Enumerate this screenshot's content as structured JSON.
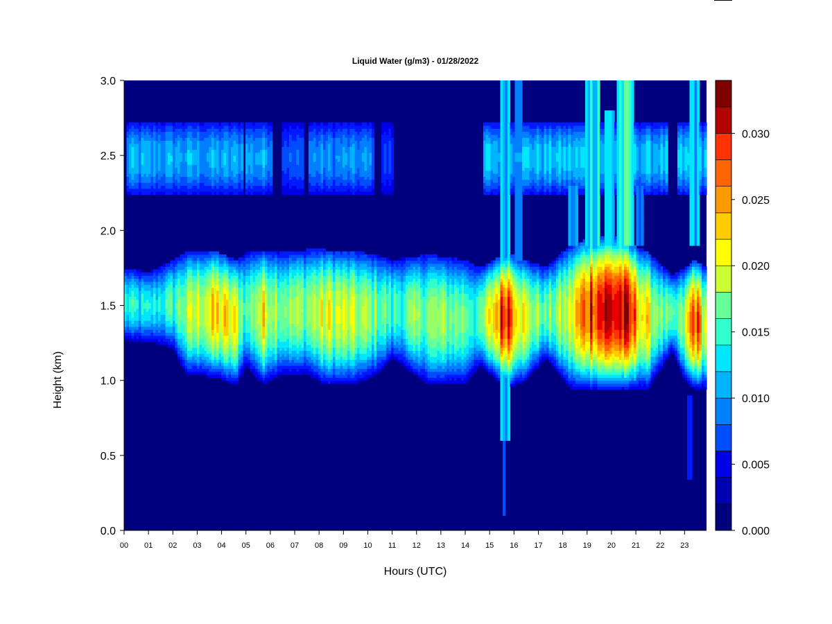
{
  "chart_data": {
    "type": "heatmap",
    "title": "Liquid Water (g/m3) - 01/28/2022",
    "xlabel": "Hours (UTC)",
    "ylabel": "Height (km)",
    "x_tick_labels": [
      "00",
      "01",
      "02",
      "03",
      "04",
      "05",
      "06",
      "07",
      "08",
      "09",
      "10",
      "11",
      "12",
      "13",
      "14",
      "15",
      "16",
      "17",
      "18",
      "19",
      "20",
      "21",
      "22",
      "23"
    ],
    "y_tick_labels": [
      "0.0",
      "0.5",
      "1.0",
      "1.5",
      "2.0",
      "2.5",
      "3.0"
    ],
    "y_tick_values": [
      0.0,
      0.5,
      1.0,
      1.5,
      2.0,
      2.5,
      3.0
    ],
    "xlim": [
      0,
      23.9
    ],
    "ylim": [
      0,
      3.0
    ],
    "colorbar": {
      "range": [
        0,
        0.034
      ],
      "levels": 17,
      "colors": [
        "#00007f",
        "#0000b3",
        "#0000e6",
        "#0019ff",
        "#004dff",
        "#0080ff",
        "#00b3ff",
        "#00e6ff",
        "#33ffcc",
        "#66ff99",
        "#99ff66",
        "#ccff33",
        "#ffff00",
        "#ffcc00",
        "#ff9900",
        "#ff6600",
        "#ff3300",
        "#e60000",
        "#b30000",
        "#800000"
      ],
      "tick_labels": [
        "0.000",
        "0.005",
        "0.010",
        "0.015",
        "0.020",
        "0.025",
        "0.030"
      ],
      "tick_values": [
        0.0,
        0.005,
        0.01,
        0.015,
        0.02,
        0.025,
        0.03
      ]
    },
    "features": {
      "low_cloud": {
        "profile": [
          {
            "t": 0.0,
            "base": 1.27,
            "top": 1.75,
            "peak": 0.012
          },
          {
            "t": 1.0,
            "base": 1.26,
            "top": 1.72,
            "peak": 0.011
          },
          {
            "t": 2.0,
            "base": 1.22,
            "top": 1.8,
            "peak": 0.013
          },
          {
            "t": 2.5,
            "base": 1.05,
            "top": 1.85,
            "peak": 0.016
          },
          {
            "t": 3.8,
            "base": 1.02,
            "top": 1.86,
            "peak": 0.021
          },
          {
            "t": 4.6,
            "base": 0.97,
            "top": 1.8,
            "peak": 0.019
          },
          {
            "t": 5.0,
            "base": 1.1,
            "top": 1.85,
            "peak": 0.013
          },
          {
            "t": 5.7,
            "base": 0.98,
            "top": 1.86,
            "peak": 0.02
          },
          {
            "t": 6.5,
            "base": 1.04,
            "top": 1.85,
            "peak": 0.016
          },
          {
            "t": 7.5,
            "base": 1.05,
            "top": 1.87,
            "peak": 0.016
          },
          {
            "t": 8.3,
            "base": 0.97,
            "top": 1.87,
            "peak": 0.019
          },
          {
            "t": 9.5,
            "base": 0.98,
            "top": 1.86,
            "peak": 0.017
          },
          {
            "t": 10.5,
            "base": 1.05,
            "top": 1.83,
            "peak": 0.015
          },
          {
            "t": 11.0,
            "base": 1.15,
            "top": 1.8,
            "peak": 0.013
          },
          {
            "t": 12.5,
            "base": 0.97,
            "top": 1.84,
            "peak": 0.016
          },
          {
            "t": 14.0,
            "base": 0.98,
            "top": 1.8,
            "peak": 0.015
          },
          {
            "t": 14.6,
            "base": 1.1,
            "top": 1.75,
            "peak": 0.013
          },
          {
            "t": 15.7,
            "base": 0.95,
            "top": 1.85,
            "peak": 0.03
          },
          {
            "t": 16.5,
            "base": 1.0,
            "top": 1.8,
            "peak": 0.018
          },
          {
            "t": 17.3,
            "base": 1.15,
            "top": 1.75,
            "peak": 0.014
          },
          {
            "t": 18.3,
            "base": 0.95,
            "top": 1.9,
            "peak": 0.018
          },
          {
            "t": 19.2,
            "base": 0.94,
            "top": 1.95,
            "peak": 0.029
          },
          {
            "t": 20.4,
            "base": 0.94,
            "top": 1.95,
            "peak": 0.03
          },
          {
            "t": 21.5,
            "base": 0.95,
            "top": 1.85,
            "peak": 0.019
          },
          {
            "t": 22.5,
            "base": 1.2,
            "top": 1.7,
            "peak": 0.012
          },
          {
            "t": 23.0,
            "base": 1.0,
            "top": 1.75,
            "peak": 0.016
          },
          {
            "t": 23.4,
            "base": 0.95,
            "top": 1.8,
            "peak": 0.028
          },
          {
            "t": 23.9,
            "base": 0.95,
            "top": 1.75,
            "peak": 0.017
          }
        ]
      },
      "upper_layer": {
        "base": 2.25,
        "top": 2.72,
        "segments": [
          {
            "t0": 0.1,
            "t1": 4.9,
            "peak": 0.01
          },
          {
            "t0": 5.0,
            "t1": 6.1,
            "peak": 0.01
          },
          {
            "t0": 6.5,
            "t1": 7.4,
            "peak": 0.007
          },
          {
            "t0": 7.6,
            "t1": 10.3,
            "peak": 0.009
          },
          {
            "t0": 10.6,
            "t1": 11.1,
            "peak": 0.006
          },
          {
            "t0": 14.7,
            "t1": 22.3,
            "peak": 0.011
          },
          {
            "t0": 22.7,
            "t1": 23.9,
            "peak": 0.011
          }
        ]
      },
      "columns": [
        {
          "t0": 15.45,
          "t1": 15.85,
          "y0": 0.6,
          "y1": 3.0,
          "peak": 0.012
        },
        {
          "t0": 16.0,
          "t1": 16.3,
          "y0": 1.8,
          "y1": 3.0,
          "peak": 0.011
        },
        {
          "t0": 18.2,
          "t1": 18.6,
          "y0": 1.9,
          "y1": 2.3,
          "peak": 0.01
        },
        {
          "t0": 18.9,
          "t1": 19.5,
          "y0": 1.9,
          "y1": 3.0,
          "peak": 0.014
        },
        {
          "t0": 19.7,
          "t1": 20.1,
          "y0": 1.9,
          "y1": 2.8,
          "peak": 0.012
        },
        {
          "t0": 20.2,
          "t1": 20.9,
          "y0": 1.9,
          "y1": 3.0,
          "peak": 0.014
        },
        {
          "t0": 21.0,
          "t1": 21.3,
          "y0": 1.9,
          "y1": 2.3,
          "peak": 0.01
        },
        {
          "t0": 23.2,
          "t1": 23.6,
          "y0": 1.9,
          "y1": 3.0,
          "peak": 0.012
        },
        {
          "t0": 23.15,
          "t1": 23.3,
          "y0": 0.35,
          "y1": 0.9,
          "peak": 0.006
        },
        {
          "t0": 15.58,
          "t1": 15.68,
          "y0": 0.1,
          "y1": 0.95,
          "peak": 0.009
        }
      ]
    }
  }
}
